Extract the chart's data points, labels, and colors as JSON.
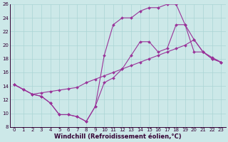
{
  "xlabel": "Windchill (Refroidissement éolien,°C)",
  "xlim": [
    -0.5,
    23.5
  ],
  "ylim": [
    8,
    26
  ],
  "xticks": [
    0,
    1,
    2,
    3,
    4,
    5,
    6,
    7,
    8,
    9,
    10,
    11,
    12,
    13,
    14,
    15,
    16,
    17,
    18,
    19,
    20,
    21,
    22,
    23
  ],
  "yticks": [
    8,
    10,
    12,
    14,
    16,
    18,
    20,
    22,
    24,
    26
  ],
  "bg_color": "#cce8e8",
  "line_color": "#993399",
  "grid_color": "#aad4d4",
  "line1_x": [
    0,
    1,
    2,
    3,
    4,
    5,
    6,
    7,
    8,
    9,
    10,
    11,
    12,
    13,
    14,
    15,
    16,
    17,
    18,
    19,
    20,
    21,
    22,
    23
  ],
  "line1_y": [
    14.2,
    13.5,
    12.8,
    12.5,
    11.5,
    9.8,
    9.8,
    9.5,
    8.8,
    11.0,
    18.5,
    23.0,
    24.0,
    24.0,
    25.0,
    25.5,
    25.5,
    26.0,
    26.0,
    23.0,
    19.0,
    19.0,
    18.0,
    17.5
  ],
  "line2_x": [
    0,
    1,
    2,
    3,
    4,
    5,
    6,
    7,
    8,
    9,
    10,
    11,
    12,
    13,
    14,
    15,
    16,
    17,
    18,
    19,
    20,
    21,
    22,
    23
  ],
  "line2_y": [
    14.2,
    13.5,
    12.8,
    13.0,
    13.2,
    13.4,
    13.6,
    13.8,
    14.5,
    15.0,
    15.5,
    16.0,
    16.5,
    17.0,
    17.5,
    18.0,
    18.5,
    19.0,
    19.5,
    20.0,
    20.8,
    19.0,
    18.2,
    17.5
  ],
  "line3_x": [
    0,
    1,
    2,
    3,
    4,
    5,
    6,
    7,
    8,
    9,
    10,
    11,
    12,
    13,
    14,
    15,
    16,
    17,
    18,
    19,
    20,
    21,
    22,
    23
  ],
  "line3_y": [
    14.2,
    13.5,
    12.8,
    12.5,
    11.5,
    9.8,
    9.8,
    9.5,
    8.8,
    11.0,
    14.5,
    15.2,
    16.5,
    18.5,
    20.5,
    20.5,
    19.0,
    19.5,
    23.0,
    23.0,
    20.8,
    19.0,
    18.0,
    17.5
  ],
  "marker": "D",
  "markersize": 2.0,
  "linewidth": 0.8,
  "tick_fontsize": 5.0,
  "label_fontsize": 6.0
}
